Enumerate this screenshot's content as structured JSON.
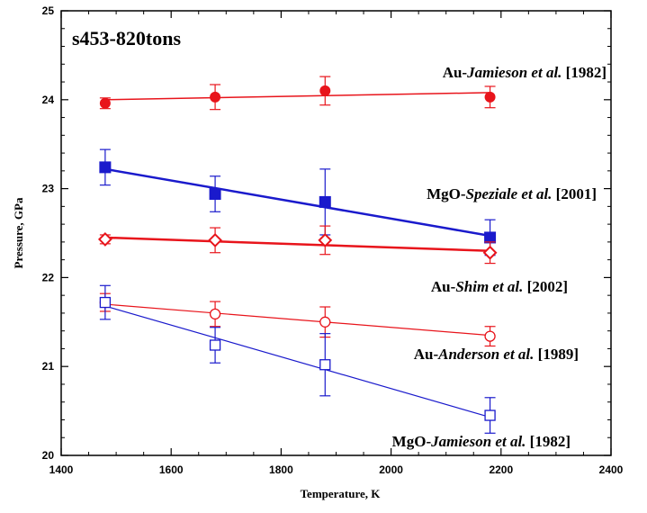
{
  "chart_data": {
    "type": "scatter",
    "title": "s453-820tons",
    "xlabel": "Temperature, K",
    "ylabel": "Pressure, GPa",
    "xlim": [
      1400,
      2400
    ],
    "ylim": [
      20,
      25
    ],
    "xticks": [
      "1400",
      "1600",
      "1800",
      "2000",
      "2200",
      "2400"
    ],
    "yticks": [
      "20",
      "21",
      "22",
      "23",
      "24",
      "25"
    ],
    "grid": false,
    "series": [
      {
        "label_prefix": "Au-",
        "label_italic": "Jamieson et al.",
        "label_suffix": " [1982]",
        "color": "#e8141b",
        "marker": "filled-circle",
        "line_width": 1.5,
        "x": [
          1480,
          1680,
          1880,
          2180
        ],
        "y": [
          23.96,
          24.03,
          24.1,
          24.03
        ],
        "err": [
          0.06,
          0.14,
          0.16,
          0.12
        ],
        "fit": [
          [
            1480,
            24.0
          ],
          [
            2180,
            24.08
          ]
        ]
      },
      {
        "label_prefix": "MgO-",
        "label_italic": "Speziale et al.",
        "label_suffix": " [2001]",
        "color": "#1a1acc",
        "marker": "filled-square",
        "line_width": 2.5,
        "x": [
          1480,
          1680,
          1880,
          2180
        ],
        "y": [
          23.24,
          22.94,
          22.85,
          22.45
        ],
        "err": [
          0.2,
          0.2,
          0.37,
          0.2
        ],
        "fit": [
          [
            1480,
            23.22
          ],
          [
            2180,
            22.47
          ]
        ]
      },
      {
        "label_prefix": "Au-",
        "label_italic": "Shim et al.",
        "label_suffix": " [2002]",
        "color": "#e8141b",
        "marker": "open-diamond",
        "line_width": 2.5,
        "x": [
          1480,
          1680,
          1880,
          2180
        ],
        "y": [
          22.43,
          22.42,
          22.42,
          22.28
        ],
        "err": [
          0.05,
          0.14,
          0.16,
          0.12
        ],
        "fit": [
          [
            1480,
            22.45
          ],
          [
            2180,
            22.3
          ]
        ]
      },
      {
        "label_prefix": "Au-",
        "label_italic": "Anderson et al.",
        "label_suffix": " [1989]",
        "color": "#e8141b",
        "marker": "open-circle",
        "line_width": 1.2,
        "x": [
          1480,
          1680,
          1880,
          2180
        ],
        "y": [
          21.72,
          21.59,
          21.5,
          21.34
        ],
        "err": [
          0.1,
          0.14,
          0.17,
          0.11
        ],
        "fit": [
          [
            1480,
            21.7
          ],
          [
            2180,
            21.35
          ]
        ]
      },
      {
        "label_prefix": "MgO-",
        "label_italic": "Jamieson et al.",
        "label_suffix": " [1982]",
        "color": "#1a1acc",
        "marker": "open-square",
        "line_width": 1.2,
        "x": [
          1480,
          1680,
          1880,
          2180
        ],
        "y": [
          21.72,
          21.24,
          21.02,
          20.45
        ],
        "err": [
          0.19,
          0.2,
          0.35,
          0.2
        ],
        "fit": [
          [
            1480,
            21.68
          ],
          [
            2180,
            20.43
          ]
        ]
      }
    ]
  }
}
